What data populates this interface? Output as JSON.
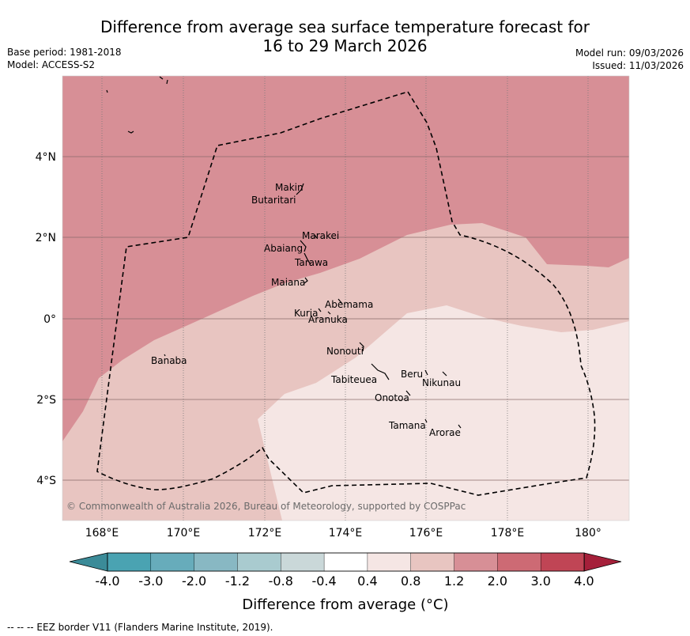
{
  "header": {
    "title_line1": "Difference from average sea surface temperature forecast for",
    "title_line2": "16 to 29 March 2026",
    "base_period": "Base period: 1981-2018",
    "model": "Model: ACCESS-S2",
    "model_run": "Model run: 09/03/2026",
    "issued": "Issued: 11/03/2026"
  },
  "map": {
    "lat_labels": [
      "4°N",
      "2°N",
      "0°",
      "2°S",
      "4°S"
    ],
    "lon_labels": [
      "168°E",
      "170°E",
      "172°E",
      "174°E",
      "176°E",
      "178°E",
      "180°"
    ],
    "islands": [
      "Makin",
      "Butaritari",
      "Marakei",
      "Abaiang",
      "Tarawa",
      "Maiana",
      "Abemama",
      "Kuria",
      "Aranuka",
      "Nonouti",
      "Banaba",
      "Tabiteuea",
      "Beru",
      "Nikunau",
      "Onotoa",
      "Tamana",
      "Arorae"
    ],
    "copyright": "© Commonwealth of Australia 2026, Bureau of Meteorology, supported by COSPPac"
  },
  "colorbar": {
    "ticks": [
      "-4.0",
      "-3.0",
      "-2.0",
      "-1.2",
      "-0.8",
      "-0.4",
      "0.4",
      "0.8",
      "1.2",
      "2.0",
      "3.0",
      "4.0"
    ],
    "colors": [
      "#4aa3b2",
      "#67acbb",
      "#88b8c3",
      "#a9cbcf",
      "#cad8d9",
      "#ffffff",
      "#f5e6e4",
      "#e8c5c1",
      "#d78f96",
      "#cd6a74",
      "#c04555"
    ],
    "low_extend_color": "#3b8b98",
    "high_extend_color": "#a5203a",
    "label": "Difference from average (°C)"
  },
  "footer": {
    "legend": "--  --  -- EEZ border V11 (Flanders Marine Institute, 2019)."
  }
}
